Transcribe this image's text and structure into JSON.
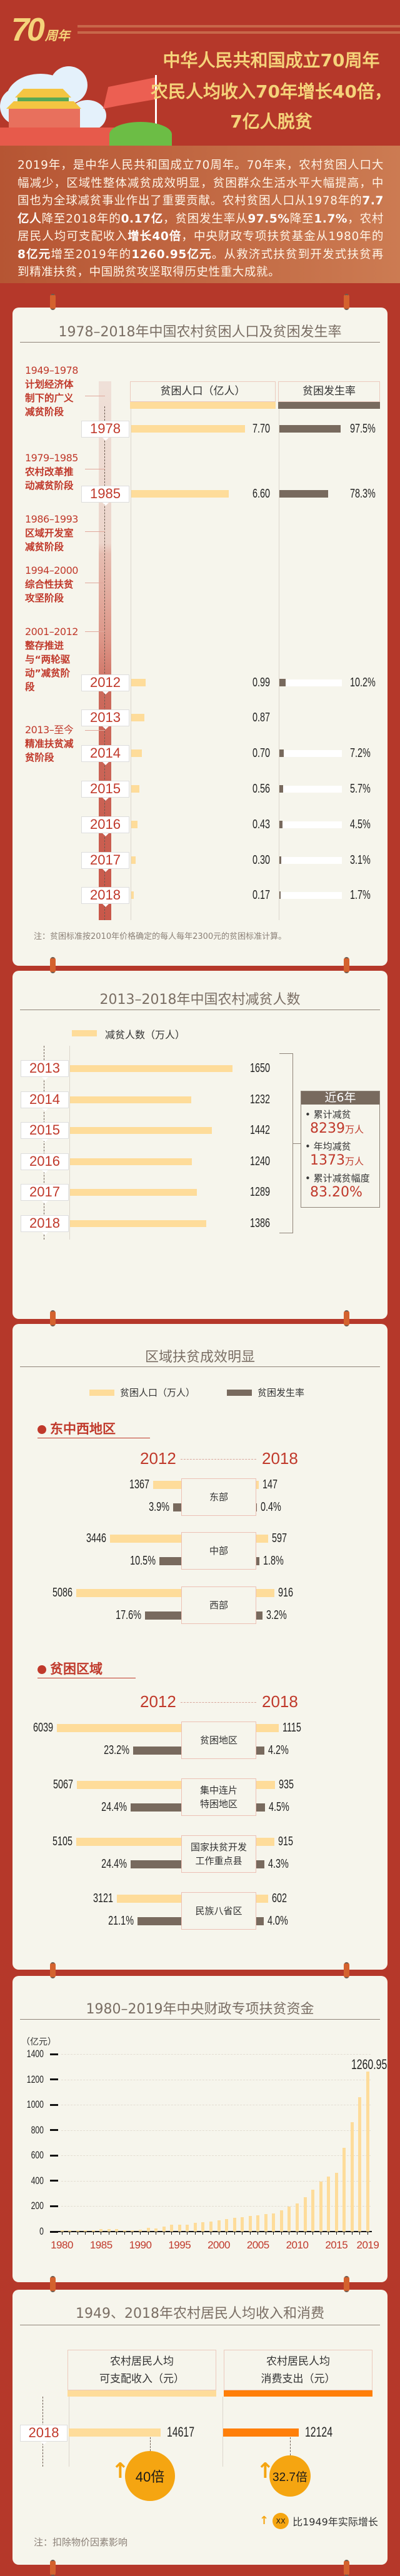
{
  "header": {
    "logo_number": "70",
    "logo_suffix": "周年",
    "title_lines": [
      "中华人民共和国成立70周年",
      "农民人均收入70年增长40倍，",
      "7亿人脱贫"
    ]
  },
  "intro": [
    {
      "text": "2019年，是中华人民共和国成立70周年。70年来，农村贫困人口大幅减少，区域性整体减贫成效明显，贫困群众生活水平大幅提高，中国也为全球减贫事业作出了重要贡献。农村贫困人口从1978年的",
      "bold": false
    },
    {
      "text": "7.7亿人",
      "bold": true
    },
    {
      "text": "降至2018年的",
      "bold": false
    },
    {
      "text": "0.17亿",
      "bold": true
    },
    {
      "text": "，贫困发生率从",
      "bold": false
    },
    {
      "text": "97.5%",
      "bold": true
    },
    {
      "text": "降至",
      "bold": false
    },
    {
      "text": "1.7%",
      "bold": true
    },
    {
      "text": "，农村居民人均可支配收入",
      "bold": false
    },
    {
      "text": "增长40倍",
      "bold": true
    },
    {
      "text": "，中央财政专项扶贫基金从1980年的",
      "bold": false
    },
    {
      "text": "8亿元",
      "bold": true
    },
    {
      "text": "增至2019年的",
      "bold": false
    },
    {
      "text": "1260.95亿元",
      "bold": true
    },
    {
      "text": "。从救济式扶贫到开发式扶贫再到精准扶贫，中国脱贫攻坚取得历史性重大成就。",
      "bold": false
    }
  ],
  "timeline_stages": [
    {
      "period": "1949–1978",
      "desc": "计划经济体制下的广义减贫阶段"
    },
    {
      "period": "1979–1985",
      "desc": "农村改革推动减贫阶段"
    },
    {
      "period": "1986–1993",
      "desc": "区域开发室减贫阶段"
    },
    {
      "period": "1994–2000",
      "desc": "综合性扶贫攻坚阶段"
    },
    {
      "period": "2001–2012",
      "desc": "整存推进与“两轮驱动”减贫阶段"
    },
    {
      "period": "2013–至今",
      "desc": "精准扶贫减贫阶段"
    }
  ],
  "reduction_summary": {
    "heading": "近6年",
    "items": [
      {
        "label": "累计减贫",
        "value": "8239",
        "unit": "万人"
      },
      {
        "label": "年均减贫",
        "value": "1373",
        "unit": "万人"
      },
      {
        "label": "累计减贫幅度",
        "value": "83.20%",
        "unit": ""
      }
    ]
  },
  "regional": {
    "legend": [
      "贫困人口（万人）",
      "贫困发生率"
    ],
    "subheads": [
      "东中西地区",
      "贫困区域"
    ],
    "year_from": "2012",
    "year_to": "2018"
  },
  "income": {
    "headers": [
      "农村居民人均\n可支配收入（元）",
      "农村居民人均\n消费支出（元）"
    ],
    "year": "2018",
    "legend_badge": "XX",
    "legend_text": "比1949年实际增长",
    "note": "注：扣除物价因素影响"
  },
  "colors": {
    "background": "#b5382a",
    "panel": "#f6f5ec",
    "population_bar": "#fedc9a",
    "rate_bar": "#786a5e",
    "accent_red": "#c0392b",
    "title_gold": "#f5d37a",
    "consumption_bar": "#ff7f0a",
    "growth_circle": "#f5a511"
  },
  "chart_data": [
    {
      "type": "bar",
      "title": "1978–2018年中国农村贫困人口及贫困发生率",
      "categories": [
        "1978",
        "1985",
        "2012",
        "2013",
        "2014",
        "2015",
        "2016",
        "2017",
        "2018"
      ],
      "series": [
        {
          "name": "贫困人口（亿人）",
          "values": [
            7.7,
            6.6,
            0.99,
            0.87,
            0.7,
            0.56,
            0.43,
            0.3,
            0.17
          ]
        },
        {
          "name": "贫困发生率",
          "values": [
            97.5,
            78.3,
            10.2,
            null,
            7.2,
            5.7,
            4.5,
            3.1,
            1.7
          ],
          "unit": "%"
        }
      ],
      "orientation": "horizontal",
      "note": "注：贫困标准按2010年价格确定的每人每年2300元的贫困标准计算。"
    },
    {
      "type": "bar",
      "title": "2013–2018年中国农村减贫人数",
      "categories": [
        "2013",
        "2014",
        "2015",
        "2016",
        "2017",
        "2018"
      ],
      "series": [
        {
          "name": "减贫人数（万人）",
          "values": [
            1650,
            1232,
            1442,
            1240,
            1289,
            1386
          ]
        }
      ],
      "orientation": "horizontal",
      "legend": "top-left"
    },
    {
      "type": "bar",
      "title": "区域扶贫成效明显",
      "groups": [
        {
          "section": "东中西地区",
          "name": "东部",
          "population": [
            1367,
            147
          ],
          "rate": [
            3.9,
            0.4
          ]
        },
        {
          "section": "东中西地区",
          "name": "中部",
          "population": [
            3446,
            597
          ],
          "rate": [
            10.5,
            1.8
          ]
        },
        {
          "section": "东中西地区",
          "name": "西部",
          "population": [
            5086,
            916
          ],
          "rate": [
            17.6,
            3.2
          ]
        },
        {
          "section": "贫困区域",
          "name": "贫困地区",
          "population": [
            6039,
            1115
          ],
          "rate": [
            23.2,
            4.2
          ]
        },
        {
          "section": "贫困区域",
          "name": "集中连片\n特困地区",
          "population": [
            5067,
            935
          ],
          "rate": [
            24.4,
            4.5
          ]
        },
        {
          "section": "贫困区域",
          "name": "国家扶贫开发\n工作重点县",
          "population": [
            5105,
            915
          ],
          "rate": [
            24.4,
            4.3
          ]
        },
        {
          "section": "贫困区域",
          "name": "民族八省区",
          "population": [
            3121,
            602
          ],
          "rate": [
            21.1,
            4.0
          ]
        }
      ],
      "years": [
        "2012",
        "2018"
      ],
      "series_names": [
        "贫困人口（万人）",
        "贫困发生率"
      ],
      "legend": "top"
    },
    {
      "type": "bar",
      "title": "1980–2019年中央财政专项扶贫资金",
      "ylabel": "（亿元）",
      "ylim": [
        0,
        1400
      ],
      "yticks": [
        0,
        200,
        400,
        600,
        800,
        1000,
        1200,
        1400
      ],
      "xticks": [
        "1980",
        "1985",
        "1990",
        "1995",
        "2000",
        "2005",
        "2010",
        "2015",
        "2019"
      ],
      "grid": true,
      "categories": [
        "1980",
        "1981",
        "1982",
        "1983",
        "1984",
        "1985",
        "1986",
        "1987",
        "1988",
        "1989",
        "1990",
        "1991",
        "1992",
        "1993",
        "1994",
        "1995",
        "1996",
        "1997",
        "1998",
        "1999",
        "2000",
        "2001",
        "2002",
        "2003",
        "2004",
        "2005",
        "2006",
        "2007",
        "2008",
        "2009",
        "2010",
        "2011",
        "2012",
        "2013",
        "2014",
        "2015",
        "2016",
        "2017",
        "2018",
        "2019"
      ],
      "values": [
        8,
        8,
        8,
        9,
        9,
        19,
        19,
        19,
        9,
        9,
        16,
        28,
        24,
        41,
        53,
        53,
        53,
        71,
        74,
        79,
        89,
        100,
        107,
        115,
        123,
        128,
        138,
        143,
        168,
        197,
        223,
        272,
        332,
        394,
        433,
        461,
        661,
        861,
        1061,
        1260.95
      ],
      "annotation": "1260.95"
    },
    {
      "type": "bar",
      "title": "1949、2018年农村居民人均收入和消费",
      "categories": [
        "2018"
      ],
      "series": [
        {
          "name": "农村居民人均可支配收入（元）",
          "values": [
            14617
          ],
          "growth": "40倍"
        },
        {
          "name": "农村居民人均消费支出（元）",
          "values": [
            12124
          ],
          "growth": "32.7倍"
        }
      ],
      "orientation": "horizontal"
    }
  ]
}
